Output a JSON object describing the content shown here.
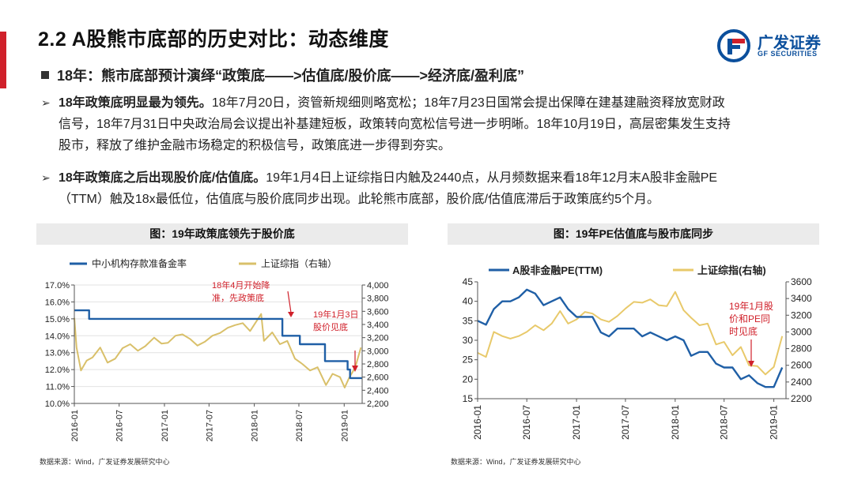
{
  "header": {
    "title": "2.2 A股熊市底部的历史对比：动态维度",
    "logo": {
      "name": "广发证券",
      "sub": "GF SECURITIES",
      "colors": {
        "blue": "#0b4f9c",
        "red": "#d0202a"
      }
    }
  },
  "headline": "18年：熊市底部预计演绎“政策底——>估值底/股价底——>经济底/盈利底”",
  "paragraphs": [
    {
      "bold": "18年政策底明显最为领先。",
      "line1": "18年7月20日，资管新规细则略宽松；18年7月23日国常会提出保障在建基建融资释放宽财政",
      "line2": "信号，18年7月31日中央政治局会议提出补基建短板，政策转向宽松信号进一步明晰。18年10月19日，高层密集发生支持",
      "line3": "股市，释放了维护金融市场稳定的积极信号，政策底进一步得到夯实。"
    },
    {
      "bold": "18年政策底之后出现股价底/估值底。",
      "line1": "19年1月4日上证综指日内触及2440点，从月频数据来看18年12月末A股非金融PE",
      "line2": "（TTM）触及18x最低位，估值底与股价底同步出现。此轮熊市底部，股价底/估值底滞后于政策底约5个月。"
    }
  ],
  "charts": {
    "left": {
      "title": "图：19年政策底领先于股价底",
      "legend": [
        "中小机构存款准备金率",
        "上证综指（右轴）"
      ],
      "annotation1": [
        "18年4月开始降",
        "准，先政策底"
      ],
      "annotation2": [
        "19年1月3日",
        "股价见底"
      ],
      "source": "数据来源：Wind，广发证券发展研究中心"
    },
    "right": {
      "title": "图：19年PE估值底与股市底同步",
      "legend": [
        "A股非金融PE(TTM)",
        "上证综指(右轴)"
      ],
      "annotation": [
        "19年1月股",
        "价和PE同",
        "时见底"
      ],
      "source": "数据来源：Wind，广发证券发展研究中心"
    }
  },
  "chart_data": [
    {
      "type": "line",
      "title": "图：19年政策底领先于股价底",
      "x_ticks": [
        "2016-01",
        "2016-07",
        "2017-01",
        "2017-07",
        "2018-01",
        "2018-07",
        "2019-01"
      ],
      "x_range": [
        "2016-01-01",
        "2019-03-15"
      ],
      "y_left": {
        "ticks": [
          "10.0%",
          "11.0%",
          "12.0%",
          "13.0%",
          "14.0%",
          "15.0%",
          "16.0%",
          "17.0%"
        ],
        "range": [
          10.0,
          17.0
        ]
      },
      "y_right": {
        "ticks": [
          "2,200",
          "2,400",
          "2,600",
          "2,800",
          "3,000",
          "3,200",
          "3,400",
          "3,600",
          "3,800",
          "4,000"
        ],
        "range": [
          2200,
          4000
        ]
      },
      "series": [
        {
          "name": "中小机构存款准备金率",
          "axis": "left",
          "color": "#1f5fa6",
          "step": true,
          "points": [
            [
              "2016-01-01",
              15.5
            ],
            [
              "2016-03-01",
              15.0
            ],
            [
              "2018-04-25",
              14.0
            ],
            [
              "2018-07-05",
              13.5
            ],
            [
              "2018-10-15",
              12.5
            ],
            [
              "2019-01-15",
              12.0
            ],
            [
              "2019-01-25",
              11.5
            ],
            [
              "2019-03-15",
              11.5
            ]
          ]
        },
        {
          "name": "上证综指（右轴）",
          "axis": "right",
          "color": "#d9c06a",
          "points": [
            [
              "2016-01-01",
              3500
            ],
            [
              "2016-01-10",
              3050
            ],
            [
              "2016-01-28",
              2700
            ],
            [
              "2016-02-20",
              2850
            ],
            [
              "2016-03-15",
              2900
            ],
            [
              "2016-04-15",
              3050
            ],
            [
              "2016-05-15",
              2820
            ],
            [
              "2016-06-15",
              2880
            ],
            [
              "2016-07-15",
              3040
            ],
            [
              "2016-08-15",
              3100
            ],
            [
              "2016-09-15",
              3000
            ],
            [
              "2016-10-15",
              3070
            ],
            [
              "2016-11-20",
              3200
            ],
            [
              "2016-12-20",
              3110
            ],
            [
              "2017-01-15",
              3120
            ],
            [
              "2017-02-15",
              3230
            ],
            [
              "2017-03-15",
              3250
            ],
            [
              "2017-04-15",
              3180
            ],
            [
              "2017-05-15",
              3080
            ],
            [
              "2017-06-15",
              3140
            ],
            [
              "2017-07-15",
              3230
            ],
            [
              "2017-08-15",
              3270
            ],
            [
              "2017-09-15",
              3350
            ],
            [
              "2017-10-15",
              3390
            ],
            [
              "2017-11-15",
              3420
            ],
            [
              "2017-12-15",
              3300
            ],
            [
              "2018-01-29",
              3560
            ],
            [
              "2018-02-09",
              3150
            ],
            [
              "2018-03-15",
              3280
            ],
            [
              "2018-04-15",
              3100
            ],
            [
              "2018-05-15",
              3150
            ],
            [
              "2018-06-15",
              2880
            ],
            [
              "2018-07-15",
              2800
            ],
            [
              "2018-08-15",
              2700
            ],
            [
              "2018-09-15",
              2750
            ],
            [
              "2018-10-19",
              2480
            ],
            [
              "2018-11-15",
              2650
            ],
            [
              "2018-12-15",
              2600
            ],
            [
              "2019-01-03",
              2440
            ],
            [
              "2019-01-20",
              2580
            ],
            [
              "2019-02-15",
              2750
            ],
            [
              "2019-03-10",
              3050
            ]
          ]
        }
      ],
      "annotations": [
        {
          "text": "18年4月开始降 准，先政策底",
          "color": "#d0202a"
        },
        {
          "text": "19年1月3日 股价见底",
          "color": "#d0202a"
        }
      ]
    },
    {
      "type": "line",
      "title": "图：19年PE估值底与股市底同步",
      "x_ticks": [
        "2016-01",
        "2016-07",
        "2017-01",
        "2017-07",
        "2018-01",
        "2018-07",
        "2019-01"
      ],
      "x_range": [
        "2016-01-01",
        "2019-02-15"
      ],
      "y_left": {
        "ticks": [
          "15",
          "20",
          "25",
          "30",
          "35",
          "40",
          "45"
        ],
        "range": [
          15,
          45
        ]
      },
      "y_right": {
        "ticks": [
          "2200",
          "2400",
          "2600",
          "2800",
          "3000",
          "3200",
          "3400",
          "3600"
        ],
        "range": [
          2200,
          3600
        ]
      },
      "series": [
        {
          "name": "A股非金融PE(TTM)",
          "axis": "left",
          "color": "#1f5fa6",
          "points": [
            [
              "2016-01-01",
              35
            ],
            [
              "2016-02-01",
              34
            ],
            [
              "2016-03-01",
              38
            ],
            [
              "2016-04-01",
              40
            ],
            [
              "2016-05-01",
              40
            ],
            [
              "2016-06-01",
              41
            ],
            [
              "2016-07-01",
              43
            ],
            [
              "2016-08-01",
              42
            ],
            [
              "2016-09-01",
              39
            ],
            [
              "2016-10-01",
              40
            ],
            [
              "2016-11-01",
              41
            ],
            [
              "2016-12-01",
              38
            ],
            [
              "2017-01-01",
              36
            ],
            [
              "2017-02-01",
              36
            ],
            [
              "2017-03-01",
              36
            ],
            [
              "2017-04-01",
              32
            ],
            [
              "2017-05-01",
              31
            ],
            [
              "2017-06-01",
              33
            ],
            [
              "2017-07-01",
              33
            ],
            [
              "2017-08-01",
              33
            ],
            [
              "2017-09-01",
              31
            ],
            [
              "2017-10-01",
              32
            ],
            [
              "2017-11-01",
              31
            ],
            [
              "2017-12-01",
              30
            ],
            [
              "2018-01-01",
              31
            ],
            [
              "2018-02-01",
              30
            ],
            [
              "2018-03-01",
              26
            ],
            [
              "2018-04-01",
              27
            ],
            [
              "2018-05-01",
              27
            ],
            [
              "2018-06-01",
              24
            ],
            [
              "2018-07-01",
              23
            ],
            [
              "2018-08-01",
              23
            ],
            [
              "2018-09-01",
              20
            ],
            [
              "2018-10-01",
              21
            ],
            [
              "2018-11-01",
              19
            ],
            [
              "2018-12-01",
              18
            ],
            [
              "2019-01-01",
              18
            ],
            [
              "2019-02-01",
              23
            ]
          ]
        },
        {
          "name": "上证综指(右轴)",
          "axis": "right",
          "color": "#e8c96a",
          "points": [
            [
              "2016-01-01",
              2750
            ],
            [
              "2016-02-01",
              2700
            ],
            [
              "2016-03-01",
              3000
            ],
            [
              "2016-04-01",
              2950
            ],
            [
              "2016-05-01",
              2920
            ],
            [
              "2016-06-01",
              2950
            ],
            [
              "2016-07-01",
              3000
            ],
            [
              "2016-08-01",
              3080
            ],
            [
              "2016-09-01",
              3020
            ],
            [
              "2016-10-01",
              3100
            ],
            [
              "2016-11-01",
              3250
            ],
            [
              "2016-12-01",
              3100
            ],
            [
              "2017-01-01",
              3150
            ],
            [
              "2017-02-01",
              3240
            ],
            [
              "2017-03-01",
              3220
            ],
            [
              "2017-04-01",
              3150
            ],
            [
              "2017-05-01",
              3120
            ],
            [
              "2017-06-01",
              3190
            ],
            [
              "2017-07-01",
              3280
            ],
            [
              "2017-08-01",
              3360
            ],
            [
              "2017-09-01",
              3350
            ],
            [
              "2017-10-01",
              3390
            ],
            [
              "2017-11-01",
              3320
            ],
            [
              "2017-12-01",
              3310
            ],
            [
              "2018-01-01",
              3480
            ],
            [
              "2018-02-01",
              3260
            ],
            [
              "2018-03-01",
              3170
            ],
            [
              "2018-04-01",
              3080
            ],
            [
              "2018-05-01",
              3100
            ],
            [
              "2018-06-01",
              2850
            ],
            [
              "2018-07-01",
              2880
            ],
            [
              "2018-08-01",
              2720
            ],
            [
              "2018-09-01",
              2820
            ],
            [
              "2018-10-01",
              2600
            ],
            [
              "2018-11-01",
              2590
            ],
            [
              "2018-12-01",
              2490
            ],
            [
              "2019-01-01",
              2580
            ],
            [
              "2019-02-01",
              2950
            ]
          ]
        }
      ],
      "annotations": [
        {
          "text": "19年1月股 价和PE同 时见底",
          "color": "#d0202a"
        }
      ]
    }
  ]
}
